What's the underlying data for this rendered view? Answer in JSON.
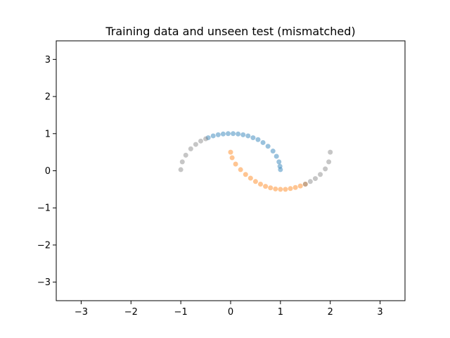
{
  "chart_data": {
    "type": "scatter",
    "title": "Training data and unseen test (mismatched)",
    "xlabel": "",
    "ylabel": "",
    "xlim": [
      -3.5,
      3.5
    ],
    "ylim": [
      -3.5,
      3.5
    ],
    "xticks": [
      -3,
      -2,
      -1,
      0,
      1,
      2,
      3
    ],
    "yticks": [
      -3,
      -2,
      -1,
      0,
      1,
      2,
      3
    ],
    "xtick_labels": [
      "−3",
      "−2",
      "−1",
      "0",
      "1",
      "2",
      "3"
    ],
    "ytick_labels": [
      "−3",
      "−2",
      "−1",
      "0",
      "1",
      "2",
      "3"
    ],
    "grid": false,
    "series": [
      {
        "color": "#1f77b4",
        "points": [
          [
            -0.45,
            0.89
          ],
          [
            -0.35,
            0.94
          ],
          [
            -0.25,
            0.97
          ],
          [
            -0.15,
            0.99
          ],
          [
            -0.05,
            1.0
          ],
          [
            0.05,
            1.0
          ],
          [
            0.15,
            0.99
          ],
          [
            0.25,
            0.97
          ],
          [
            0.35,
            0.94
          ],
          [
            0.45,
            0.89
          ],
          [
            0.55,
            0.84
          ],
          [
            0.65,
            0.76
          ],
          [
            0.75,
            0.66
          ],
          [
            0.85,
            0.53
          ],
          [
            0.92,
            0.39
          ],
          [
            0.97,
            0.24
          ],
          [
            0.99,
            0.12
          ],
          [
            1.0,
            0.03
          ]
        ]
      },
      {
        "color": "#ff7f0e",
        "points": [
          [
            0.0,
            0.5
          ],
          [
            0.03,
            0.35
          ],
          [
            0.1,
            0.18
          ],
          [
            0.2,
            0.03
          ],
          [
            0.3,
            -0.1
          ],
          [
            0.4,
            -0.2
          ],
          [
            0.5,
            -0.29
          ],
          [
            0.6,
            -0.36
          ],
          [
            0.7,
            -0.42
          ],
          [
            0.8,
            -0.46
          ],
          [
            0.9,
            -0.49
          ],
          [
            1.0,
            -0.5
          ],
          [
            1.1,
            -0.5
          ],
          [
            1.2,
            -0.48
          ],
          [
            1.3,
            -0.45
          ],
          [
            1.4,
            -0.41
          ],
          [
            1.5,
            -0.36
          ]
        ]
      },
      {
        "color": "#808080",
        "points": [
          [
            -1.0,
            0.03
          ],
          [
            -0.97,
            0.24
          ],
          [
            -0.9,
            0.42
          ],
          [
            -0.8,
            0.59
          ],
          [
            -0.7,
            0.71
          ],
          [
            -0.6,
            0.8
          ],
          [
            -0.5,
            0.86
          ],
          [
            1.5,
            -0.36
          ],
          [
            1.6,
            -0.29
          ],
          [
            1.7,
            -0.21
          ],
          [
            1.8,
            -0.1
          ],
          [
            1.9,
            0.05
          ],
          [
            1.97,
            0.24
          ],
          [
            2.0,
            0.5
          ]
        ]
      }
    ]
  }
}
